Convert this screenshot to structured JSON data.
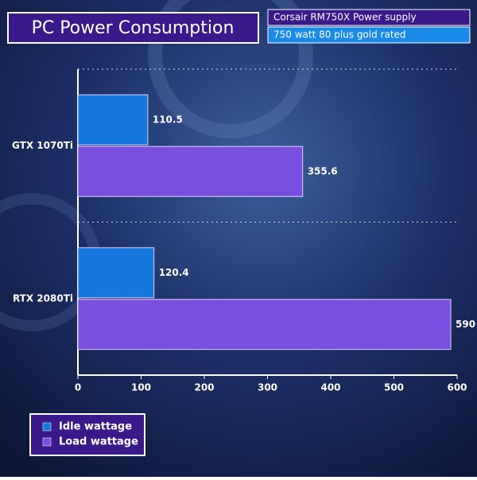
{
  "chart_data": {
    "type": "hbar",
    "title": "PC Power Consumption",
    "annotations": [
      "Corsair RM750X Power supply",
      "750 watt 80 plus gold rated"
    ],
    "categories": [
      "GTX 1070Ti",
      "RTX 2080Ti"
    ],
    "series": [
      {
        "name": "Idle wattage",
        "color": "#1677dc",
        "values": [
          110.5,
          120.4
        ]
      },
      {
        "name": "Load wattage",
        "color": "#7a4fe0",
        "values": [
          355.6,
          590
        ]
      }
    ],
    "xlim": [
      0,
      600
    ],
    "xticks": [
      0,
      100,
      200,
      300,
      400,
      500,
      600
    ],
    "legend": "bottom-left"
  }
}
